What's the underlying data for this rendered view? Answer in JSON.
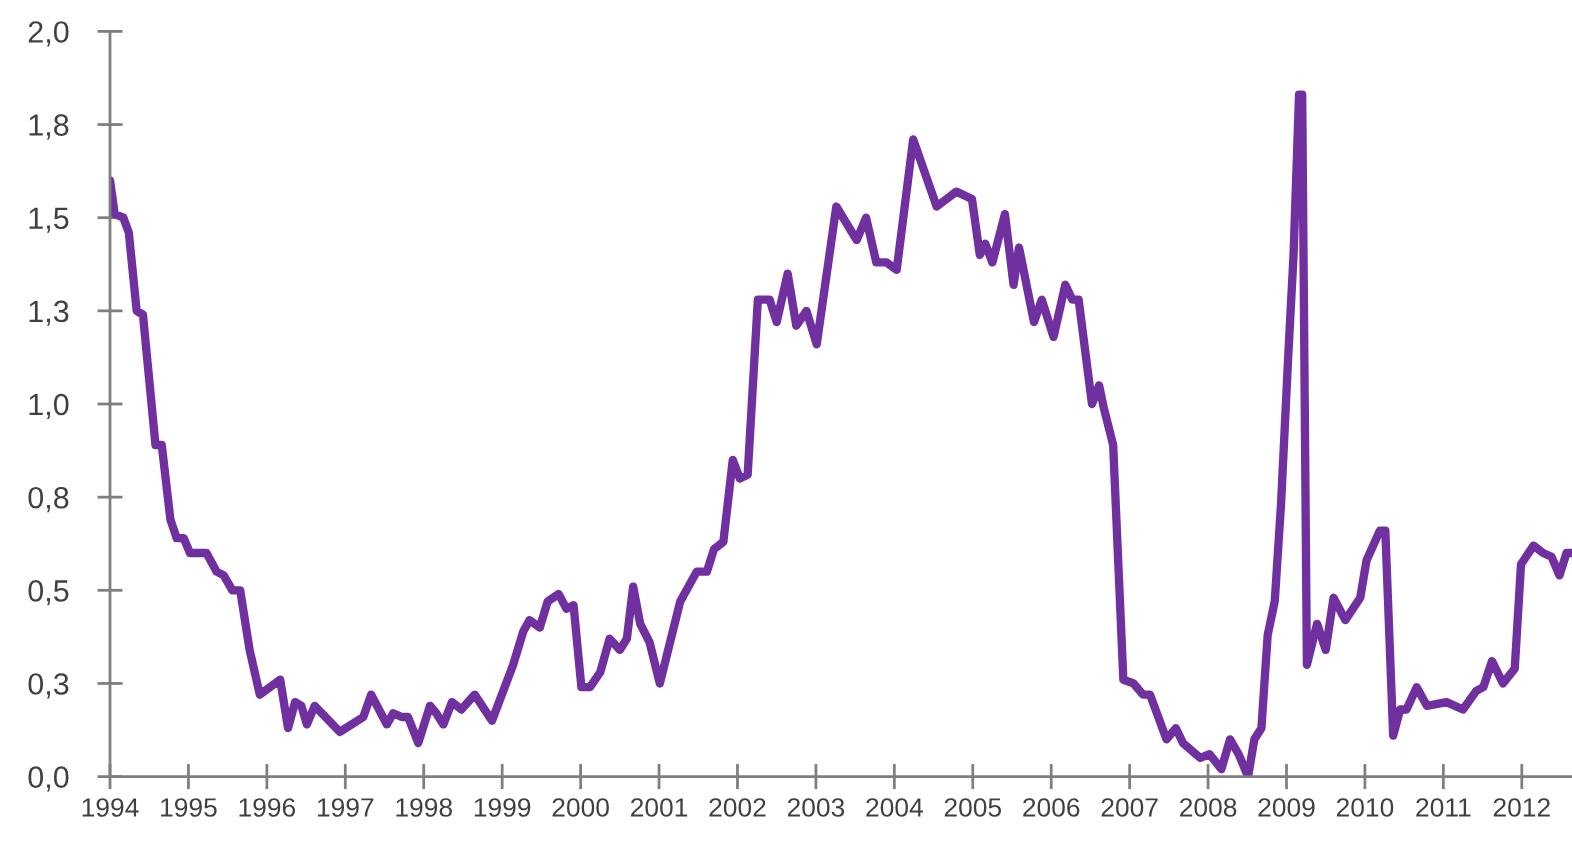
{
  "chart_data": {
    "type": "line",
    "x": [
      1994.0,
      1994.06,
      1994.17,
      1994.24,
      1994.34,
      1994.42,
      1994.58,
      1994.66,
      1994.77,
      1994.85,
      1994.94,
      1995.02,
      1995.23,
      1995.36,
      1995.45,
      1995.56,
      1995.66,
      1995.78,
      1995.91,
      1996.17,
      1996.27,
      1996.36,
      1996.44,
      1996.51,
      1996.61,
      1996.93,
      1997.23,
      1997.33,
      1997.53,
      1997.61,
      1997.72,
      1997.8,
      1997.93,
      1998.08,
      1998.16,
      1998.25,
      1998.36,
      1998.48,
      1998.65,
      1998.87,
      1999.14,
      1999.27,
      1999.35,
      1999.48,
      1999.58,
      1999.72,
      1999.82,
      1999.91,
      2000.01,
      2000.12,
      2000.25,
      2000.37,
      2000.5,
      2000.59,
      2000.67,
      2000.76,
      2000.88,
      2001.01,
      2001.27,
      2001.48,
      2001.61,
      2001.7,
      2001.82,
      2001.94,
      2002.03,
      2002.13,
      2002.26,
      2002.41,
      2002.5,
      2002.64,
      2002.75,
      2002.88,
      2003.01,
      2003.26,
      2003.52,
      2003.64,
      2003.77,
      2003.9,
      2004.03,
      2004.24,
      2004.54,
      2004.79,
      2004.99,
      2005.09,
      2005.16,
      2005.25,
      2005.41,
      2005.52,
      2005.59,
      2005.78,
      2005.88,
      2006.03,
      2006.18,
      2006.27,
      2006.35,
      2006.52,
      2006.61,
      2006.67,
      2006.79,
      2006.92,
      2007.05,
      2007.17,
      2007.26,
      2007.47,
      2007.59,
      2007.68,
      2007.9,
      2008.02,
      2008.17,
      2008.28,
      2008.39,
      2008.51,
      2008.59,
      2008.68,
      2008.76,
      2008.85,
      2008.93,
      2009.02,
      2009.09,
      2009.16,
      2009.2,
      2009.26,
      2009.39,
      2009.5,
      2009.6,
      2009.75,
      2009.94,
      2010.02,
      2010.19,
      2010.26,
      2010.36,
      2010.45,
      2010.53,
      2010.66,
      2010.79,
      2011.04,
      2011.25,
      2011.42,
      2011.51,
      2011.62,
      2011.76,
      2011.91,
      2011.99,
      2012.15,
      2012.27,
      2012.38,
      2012.48,
      2012.57,
      2012.64
    ],
    "series": [
      {
        "color": "#7030a0",
        "values": [
          1.6,
          1.51,
          1.5,
          1.46,
          1.25,
          1.24,
          0.89,
          0.89,
          0.69,
          0.64,
          0.64,
          0.6,
          0.6,
          0.55,
          0.54,
          0.5,
          0.5,
          0.34,
          0.22,
          0.26,
          0.13,
          0.2,
          0.19,
          0.14,
          0.19,
          0.12,
          0.16,
          0.22,
          0.14,
          0.17,
          0.16,
          0.16,
          0.09,
          0.19,
          0.17,
          0.14,
          0.2,
          0.18,
          0.22,
          0.15,
          0.3,
          0.39,
          0.42,
          0.4,
          0.47,
          0.49,
          0.45,
          0.46,
          0.24,
          0.24,
          0.28,
          0.37,
          0.34,
          0.37,
          0.51,
          0.41,
          0.36,
          0.25,
          0.47,
          0.55,
          0.55,
          0.61,
          0.63,
          0.85,
          0.8,
          0.81,
          1.28,
          1.28,
          1.22,
          1.35,
          1.21,
          1.25,
          1.16,
          1.53,
          1.44,
          1.5,
          1.38,
          1.38,
          1.36,
          1.71,
          1.53,
          1.57,
          1.55,
          1.4,
          1.43,
          1.38,
          1.51,
          1.32,
          1.42,
          1.22,
          1.28,
          1.18,
          1.32,
          1.28,
          1.28,
          1.0,
          1.05,
          0.99,
          0.89,
          0.26,
          0.25,
          0.22,
          0.22,
          0.1,
          0.13,
          0.09,
          0.05,
          0.06,
          0.02,
          0.1,
          0.06,
          0.0,
          0.1,
          0.13,
          0.38,
          0.47,
          0.73,
          1.12,
          1.4,
          1.83,
          1.83,
          0.3,
          0.41,
          0.34,
          0.48,
          0.42,
          0.48,
          0.58,
          0.66,
          0.66,
          0.11,
          0.18,
          0.18,
          0.24,
          0.19,
          0.2,
          0.18,
          0.23,
          0.24,
          0.31,
          0.25,
          0.29,
          0.57,
          0.62,
          0.6,
          0.59,
          0.54,
          0.6,
          0.6
        ]
      }
    ],
    "xlim": [
      1994,
      2012.64
    ],
    "xticks": [
      1994,
      1995,
      1996,
      1997,
      1998,
      1999,
      2000,
      2001,
      2002,
      2003,
      2004,
      2005,
      2006,
      2007,
      2008,
      2009,
      2010,
      2011,
      2012
    ],
    "ylim": [
      0,
      2
    ],
    "yticks": [
      {
        "value": 0,
        "label": "0,0"
      },
      {
        "value": 0.25,
        "label": "0,3"
      },
      {
        "value": 0.5,
        "label": "0,5"
      },
      {
        "value": 0.75,
        "label": "0,8"
      },
      {
        "value": 1.0,
        "label": "1,0"
      },
      {
        "value": 1.25,
        "label": "1,3"
      },
      {
        "value": 1.5,
        "label": "1,5"
      },
      {
        "value": 1.75,
        "label": "1,8"
      },
      {
        "value": 2.0,
        "label": "2,0"
      }
    ]
  }
}
